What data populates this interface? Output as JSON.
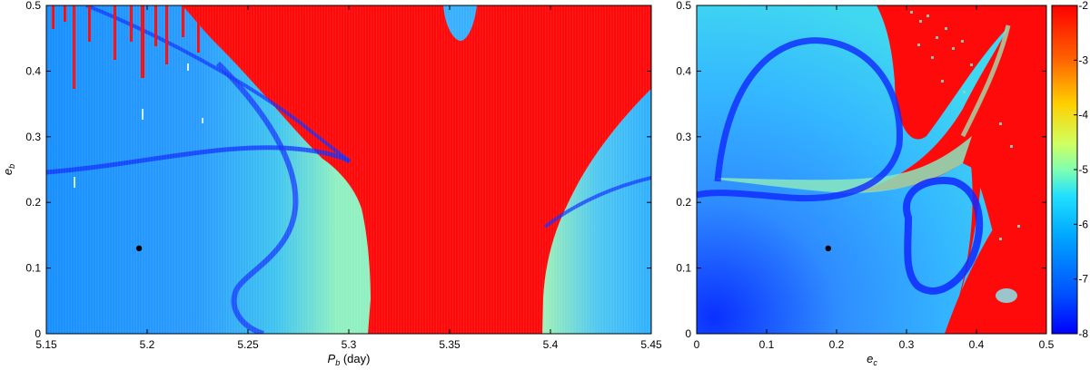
{
  "chart_data": [
    {
      "type": "heatmap",
      "xlabel_main": "P",
      "xlabel_sub": "b",
      "xlabel_suffix": " (day)",
      "ylabel_main": "e",
      "ylabel_sub": "b",
      "xlim": [
        5.15,
        5.45
      ],
      "ylim": [
        0,
        0.5
      ],
      "xticks": [
        {
          "value": 5.15,
          "label": "5.15"
        },
        {
          "value": 5.2,
          "label": "5.2"
        },
        {
          "value": 5.25,
          "label": "5.25"
        },
        {
          "value": 5.3,
          "label": "5.3"
        },
        {
          "value": 5.35,
          "label": "5.35"
        },
        {
          "value": 5.4,
          "label": "5.4"
        },
        {
          "value": 5.45,
          "label": "5.45"
        }
      ],
      "yticks": [
        {
          "value": 0,
          "label": "0"
        },
        {
          "value": 0.1,
          "label": "0.1"
        },
        {
          "value": 0.2,
          "label": "0.2"
        },
        {
          "value": 0.3,
          "label": "0.3"
        },
        {
          "value": 0.4,
          "label": "0.4"
        },
        {
          "value": 0.5,
          "label": "0.5"
        }
      ],
      "marker": {
        "x": 5.196,
        "y": 0.13
      },
      "grid": false
    },
    {
      "type": "heatmap",
      "xlabel_main": "e",
      "xlabel_sub": "c",
      "xlabel_suffix": "",
      "ylabel_main": "",
      "ylabel_sub": "",
      "xlim": [
        0,
        0.5
      ],
      "ylim": [
        0,
        0.5
      ],
      "xticks": [
        {
          "value": 0,
          "label": "0"
        },
        {
          "value": 0.1,
          "label": "0.1"
        },
        {
          "value": 0.2,
          "label": "0.2"
        },
        {
          "value": 0.3,
          "label": "0.3"
        },
        {
          "value": 0.4,
          "label": "0.4"
        },
        {
          "value": 0.5,
          "label": "0.5"
        }
      ],
      "yticks": [
        {
          "value": 0,
          "label": "0"
        },
        {
          "value": 0.1,
          "label": "0.1"
        },
        {
          "value": 0.2,
          "label": "0.2"
        },
        {
          "value": 0.3,
          "label": "0.3"
        },
        {
          "value": 0.4,
          "label": "0.4"
        },
        {
          "value": 0.5,
          "label": "0.5"
        }
      ],
      "marker": {
        "x": 0.188,
        "y": 0.13
      },
      "grid": false
    }
  ],
  "colorbar": {
    "range": [
      -8,
      -2
    ],
    "ticks": [
      {
        "value": -2,
        "label": "-2"
      },
      {
        "value": -3,
        "label": "-3"
      },
      {
        "value": -4,
        "label": "-4"
      },
      {
        "value": -5,
        "label": "-5"
      },
      {
        "value": -6,
        "label": "-6"
      },
      {
        "value": -7,
        "label": "-7"
      },
      {
        "value": -8,
        "label": "-8"
      }
    ],
    "colormap": "jet"
  }
}
